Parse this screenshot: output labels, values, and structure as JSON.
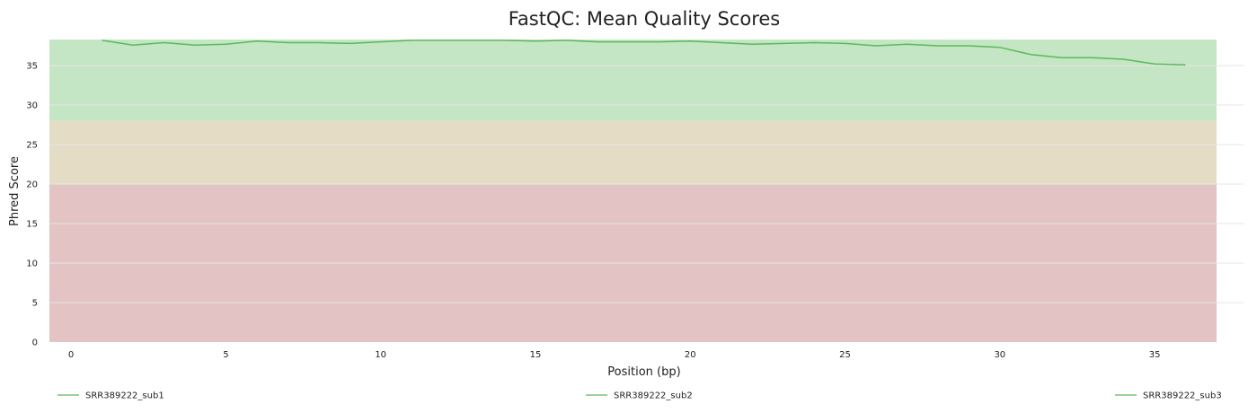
{
  "chart_data": {
    "type": "line",
    "title": "FastQC: Mean Quality Scores",
    "xlabel": "Position (bp)",
    "ylabel": "Phred Score",
    "xlim": [
      -0.7,
      37
    ],
    "ylim": [
      0,
      38.3
    ],
    "xticks": [
      0,
      5,
      10,
      15,
      20,
      25,
      30,
      35
    ],
    "yticks": [
      0,
      5,
      10,
      15,
      20,
      25,
      30,
      35
    ],
    "grid": true,
    "legend_position": "bottom",
    "bands": [
      {
        "from": 0,
        "to": 20,
        "color": "#e3c3c3"
      },
      {
        "from": 20,
        "to": 28,
        "color": "#e4dcc4"
      },
      {
        "from": 28,
        "to": 38.3,
        "color": "#c4e6c4"
      }
    ],
    "series": [
      {
        "name": "SRR389222_sub1",
        "color": "#5cb85c",
        "x": [
          1,
          2,
          3,
          4,
          5,
          6,
          7,
          8,
          9,
          10,
          11,
          12,
          13,
          14,
          15,
          16,
          17,
          18,
          19,
          20,
          21,
          22,
          23,
          24,
          25,
          26,
          27,
          28,
          29,
          30,
          31,
          32,
          33,
          34,
          35,
          36
        ],
        "y": [
          38.2,
          37.6,
          37.9,
          37.6,
          37.7,
          38.1,
          37.9,
          37.9,
          37.8,
          38.0,
          38.2,
          38.2,
          38.2,
          38.2,
          38.1,
          38.2,
          38.0,
          38.0,
          38.0,
          38.1,
          37.9,
          37.7,
          37.8,
          37.9,
          37.8,
          37.5,
          37.7,
          37.5,
          37.5,
          37.3,
          36.4,
          36.0,
          36.0,
          35.8,
          35.2,
          35.1
        ]
      },
      {
        "name": "SRR389222_sub2",
        "color": "#5cb85c",
        "x": [],
        "y": []
      },
      {
        "name": "SRR389222_sub3",
        "color": "#5cb85c",
        "x": [],
        "y": []
      }
    ]
  }
}
